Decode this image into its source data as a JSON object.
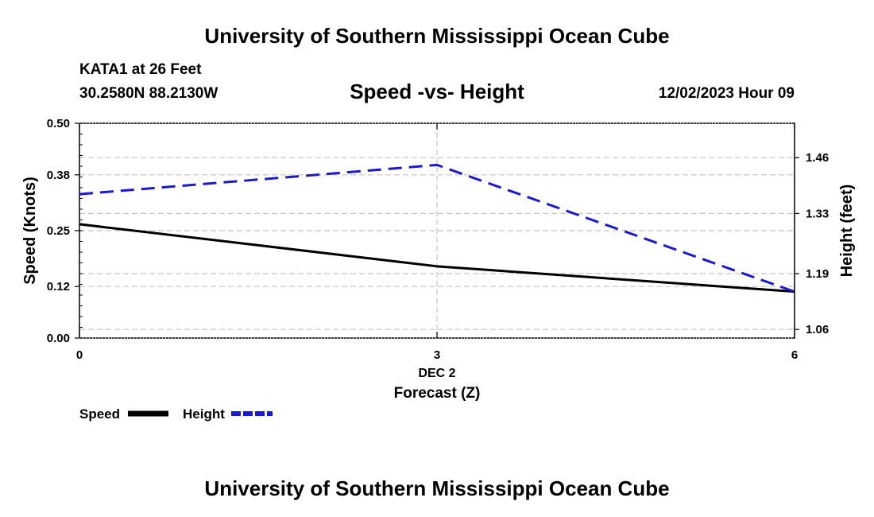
{
  "header": {
    "top_title": "University of Southern Mississippi Ocean Cube",
    "station": "KATA1 at 26 Feet",
    "coords": "30.2580N  88.2130W",
    "chart_title": "Speed -vs- Height",
    "forecast_time": "12/02/2023 Hour 09",
    "bottom_title": "University of Southern Mississippi Ocean Cube"
  },
  "chart_data": {
    "type": "line",
    "title": "Speed -vs- Height",
    "x": [
      0,
      3,
      6
    ],
    "x_tick_labels": [
      "0",
      "3",
      "6"
    ],
    "x_date_label": "DEC 2",
    "xlabel": "Forecast (Z)",
    "xlim": [
      0,
      6
    ],
    "ylabel_left": "Speed (Knots)",
    "ylim_left": [
      0,
      0.5
    ],
    "yticks_left": [
      "0.00",
      "0.12",
      "0.25",
      "0.38",
      "0.50"
    ],
    "ylabel_right": "Height (feet)",
    "ylim_right": [
      1.04,
      1.54
    ],
    "yticks_right": [
      "1.06",
      "1.19",
      "1.33",
      "1.46"
    ],
    "series": [
      {
        "name": "Speed",
        "axis": "left",
        "color": "#000000",
        "dash": "solid",
        "values": [
          0.265,
          0.167,
          0.108
        ]
      },
      {
        "name": "Height",
        "axis": "right",
        "color": "#1a1acc",
        "dash": "dashed",
        "values": [
          1.375,
          1.443,
          1.148
        ]
      }
    ],
    "legend": [
      "Speed",
      "Height"
    ],
    "legend_placement": "bottom-left",
    "grid": true
  }
}
